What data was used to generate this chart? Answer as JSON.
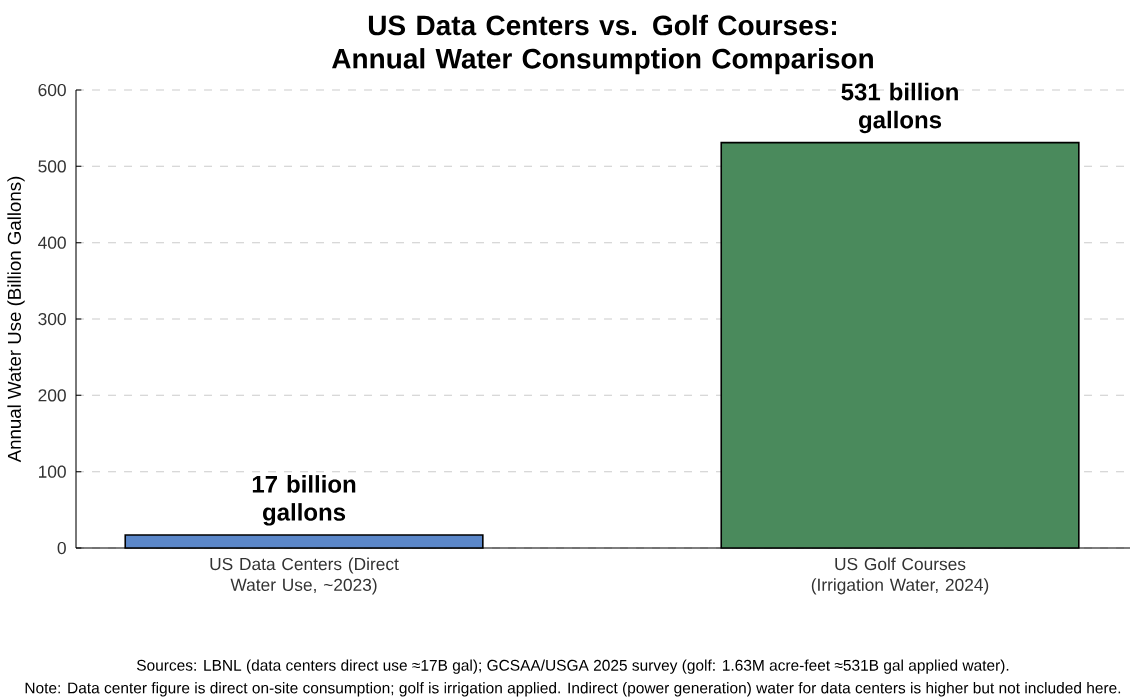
{
  "chart_data": {
    "type": "bar",
    "title": "US Data Centers vs. Golf Courses: Annual Water Consumption Comparison",
    "ylabel": "Annual Water Use (Billion Gallons)",
    "categories": [
      "US Data Centers (Direct Water Use, ~2023)",
      "US Golf Courses (Irrigation Water, 2024)"
    ],
    "values": [
      17,
      531
    ],
    "colors": [
      "#5b87c9",
      "#4a8a5c"
    ],
    "value_labels": [
      "17 billion gallons",
      "531 billion gallons"
    ],
    "ylim": [
      0,
      600
    ],
    "yticks": [
      0,
      100,
      200,
      300,
      400,
      500,
      600
    ],
    "grid": "y",
    "annotations": [
      "Sources: LBNL (data centers direct use ≈17B gal); GCSAA/USGA 2025 survey (golf: 1.63M acre-feet ≈531B gal applied water).",
      "Note: Data center figure is direct on-site consumption; golf is irrigation applied. Indirect (power generation) water for data centers is higher but not included here."
    ]
  }
}
